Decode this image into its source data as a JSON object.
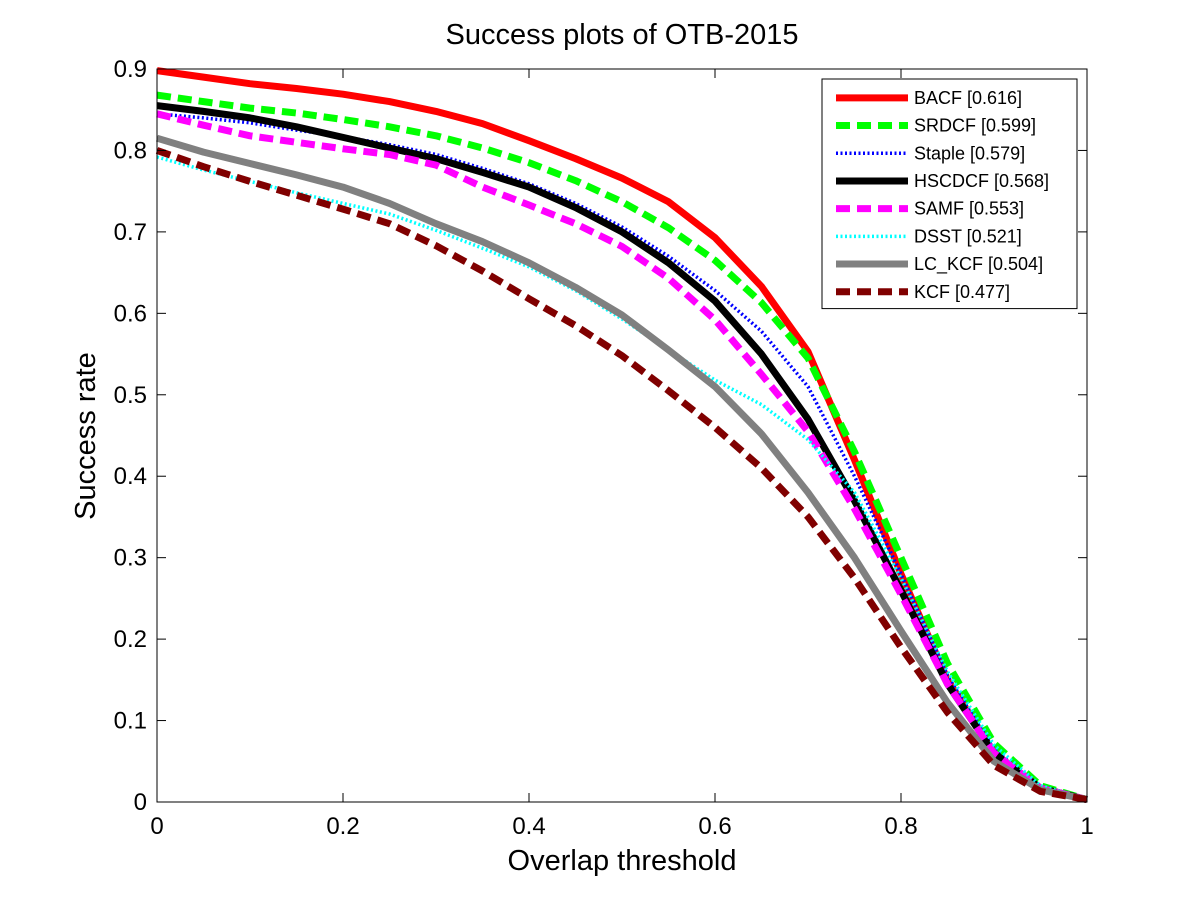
{
  "chart_data": {
    "type": "line",
    "title": "Success plots of OTB-2015",
    "xlabel": "Overlap threshold",
    "ylabel": "Success rate",
    "xlim": [
      0,
      1
    ],
    "ylim": [
      0,
      0.9
    ],
    "xticks": [
      0,
      0.2,
      0.4,
      0.6,
      0.8,
      1
    ],
    "xtick_labels": [
      "0",
      "0.2",
      "0.4",
      "0.6",
      "0.8",
      "1"
    ],
    "yticks": [
      0,
      0.1,
      0.2,
      0.3,
      0.4,
      0.5,
      0.6,
      0.7,
      0.8,
      0.9
    ],
    "ytick_labels": [
      "0",
      "0.1",
      "0.2",
      "0.3",
      "0.4",
      "0.5",
      "0.6",
      "0.7",
      "0.8",
      "0.9"
    ],
    "grid": false,
    "legend_position": "top-right",
    "x": [
      0,
      0.05,
      0.1,
      0.15,
      0.2,
      0.25,
      0.3,
      0.35,
      0.4,
      0.45,
      0.5,
      0.55,
      0.6,
      0.65,
      0.7,
      0.75,
      0.8,
      0.85,
      0.9,
      0.95,
      1.0
    ],
    "series": [
      {
        "name": "BACF [0.616]",
        "color": "#ff0000",
        "style": "solid",
        "values": [
          0.898,
          0.89,
          0.882,
          0.876,
          0.869,
          0.86,
          0.848,
          0.833,
          0.812,
          0.79,
          0.766,
          0.737,
          0.693,
          0.633,
          0.553,
          0.42,
          0.28,
          0.15,
          0.06,
          0.017,
          0.003
        ]
      },
      {
        "name": "SRDCF [0.599]",
        "color": "#00ff00",
        "style": "dashed",
        "values": [
          0.868,
          0.86,
          0.852,
          0.846,
          0.838,
          0.829,
          0.818,
          0.803,
          0.785,
          0.763,
          0.737,
          0.705,
          0.665,
          0.613,
          0.545,
          0.43,
          0.3,
          0.17,
          0.072,
          0.02,
          0.003
        ]
      },
      {
        "name": "Staple [0.579]",
        "color": "#0000ff",
        "style": "dotted",
        "values": [
          0.845,
          0.84,
          0.834,
          0.825,
          0.817,
          0.807,
          0.795,
          0.778,
          0.759,
          0.735,
          0.706,
          0.67,
          0.628,
          0.578,
          0.51,
          0.4,
          0.28,
          0.155,
          0.065,
          0.018,
          0.003
        ]
      },
      {
        "name": "HSCDCF [0.568]",
        "color": "#000000",
        "style": "solid",
        "values": [
          0.855,
          0.848,
          0.84,
          0.829,
          0.816,
          0.803,
          0.79,
          0.773,
          0.755,
          0.73,
          0.7,
          0.662,
          0.615,
          0.55,
          0.47,
          0.37,
          0.26,
          0.145,
          0.06,
          0.017,
          0.003
        ]
      },
      {
        "name": "SAMF [0.553]",
        "color": "#ff00ff",
        "style": "dashed",
        "values": [
          0.845,
          0.831,
          0.818,
          0.81,
          0.802,
          0.795,
          0.782,
          0.755,
          0.733,
          0.71,
          0.682,
          0.643,
          0.592,
          0.525,
          0.455,
          0.36,
          0.255,
          0.145,
          0.06,
          0.017,
          0.003
        ]
      },
      {
        "name": "DSST [0.521]",
        "color": "#00ffff",
        "style": "dotted",
        "values": [
          0.792,
          0.776,
          0.762,
          0.748,
          0.735,
          0.722,
          0.702,
          0.68,
          0.657,
          0.628,
          0.593,
          0.555,
          0.518,
          0.488,
          0.445,
          0.38,
          0.275,
          0.16,
          0.07,
          0.02,
          0.003
        ]
      },
      {
        "name": "LC_KCF [0.504]",
        "color": "#808080",
        "style": "solid",
        "values": [
          0.815,
          0.798,
          0.784,
          0.77,
          0.755,
          0.735,
          0.71,
          0.688,
          0.662,
          0.632,
          0.598,
          0.555,
          0.51,
          0.452,
          0.38,
          0.3,
          0.21,
          0.122,
          0.05,
          0.015,
          0.003
        ]
      },
      {
        "name": "KCF [0.477]",
        "color": "#800000",
        "style": "dashed",
        "values": [
          0.8,
          0.78,
          0.762,
          0.745,
          0.728,
          0.71,
          0.683,
          0.652,
          0.618,
          0.585,
          0.548,
          0.505,
          0.46,
          0.41,
          0.35,
          0.275,
          0.19,
          0.11,
          0.045,
          0.013,
          0.003
        ]
      }
    ]
  }
}
